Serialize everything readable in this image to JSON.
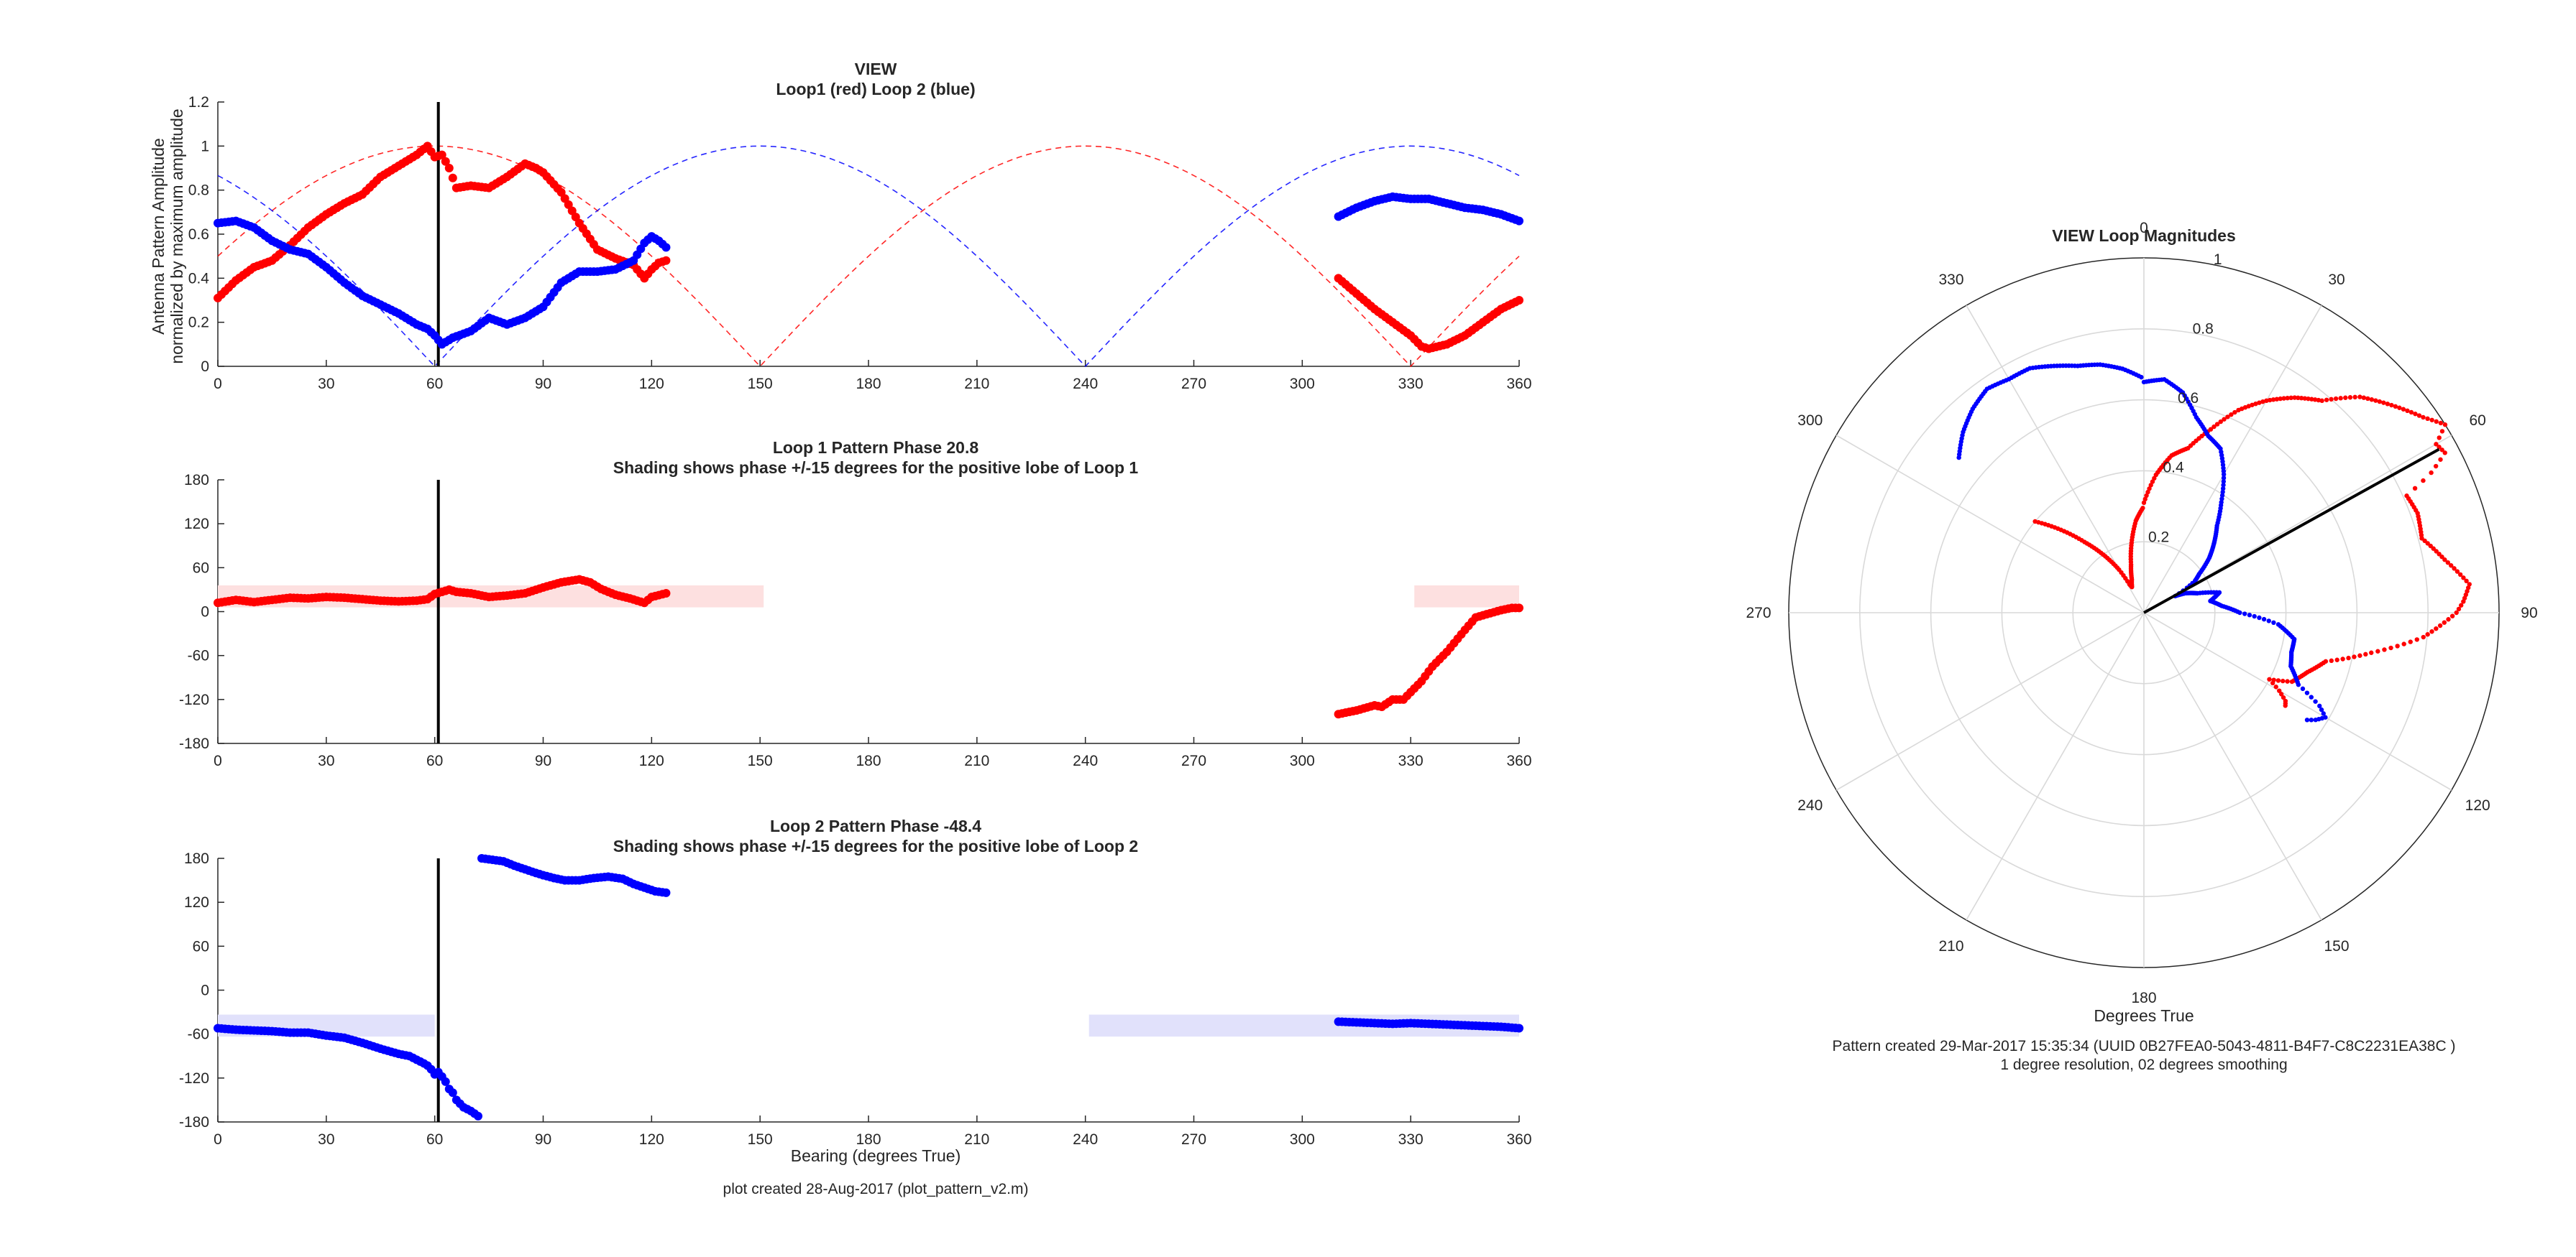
{
  "colors": {
    "loop1": "#ff0000",
    "loop2": "#0000ff",
    "shade1": "#fde0e0",
    "shade2": "#e1e1fb",
    "bearing_line": "#000000",
    "axis": "#262626",
    "grid": "#d9d9d9"
  },
  "footer": {
    "left": "plot created 28-Aug-2017 (plot_pattern_v2.m)",
    "right_line1": "Pattern created 29-Mar-2017 15:35:34 (UUID 0B27FEA0-5043-4811-B4F7-C8C2231EA38C )",
    "right_line2": "1 degree resolution, 02 degrees smoothing"
  },
  "chart_data": [
    {
      "type": "line",
      "title": "VIEW",
      "subtitle": "Loop1 (red) Loop 2 (blue)",
      "ylabel_line1": "Antenna Pattern Amplitude",
      "ylabel_line2": "normalized by maximum amplitude",
      "xlim": [
        0,
        360
      ],
      "ylim": [
        0,
        1.2
      ],
      "xticks": [
        "0",
        "30",
        "60",
        "90",
        "120",
        "150",
        "180",
        "210",
        "240",
        "270",
        "300",
        "330",
        "360"
      ],
      "yticks": [
        "0",
        "0.2",
        "0.4",
        "0.6",
        "0.8",
        "1",
        "1.2"
      ],
      "bearing_line": 61,
      "ideal_curves": [
        {
          "series": "loop1",
          "style": "dashed",
          "formula": "abs(cos(bearing - 60))"
        },
        {
          "series": "loop2",
          "style": "dashed",
          "formula": "abs(cos(bearing - 150))"
        }
      ],
      "series": [
        {
          "key": "loop1",
          "segments": [
            {
              "x": [
                0,
                5,
                10,
                15,
                20,
                25,
                30,
                35,
                40,
                45,
                50,
                55,
                58,
                60,
                62,
                64,
                66,
                70,
                75,
                80,
                85,
                88,
                90,
                95,
                100,
                105,
                110,
                115,
                118,
                120,
                122,
                124
              ],
              "y": [
                0.31,
                0.39,
                0.45,
                0.48,
                0.55,
                0.63,
                0.69,
                0.74,
                0.78,
                0.86,
                0.91,
                0.96,
                1.0,
                0.95,
                0.96,
                0.9,
                0.81,
                0.82,
                0.81,
                0.86,
                0.92,
                0.9,
                0.88,
                0.79,
                0.65,
                0.53,
                0.49,
                0.46,
                0.4,
                0.44,
                0.47,
                0.48
              ]
            },
            {
              "x": [
                310,
                315,
                320,
                325,
                330,
                333,
                335,
                340,
                345,
                350,
                355,
                360
              ],
              "y": [
                0.4,
                0.33,
                0.26,
                0.2,
                0.14,
                0.09,
                0.08,
                0.1,
                0.14,
                0.2,
                0.26,
                0.3
              ]
            }
          ]
        },
        {
          "key": "loop2",
          "segments": [
            {
              "x": [
                0,
                5,
                10,
                15,
                20,
                25,
                30,
                35,
                40,
                45,
                50,
                55,
                58,
                60,
                62,
                65,
                70,
                75,
                80,
                85,
                90,
                95,
                100,
                105,
                110,
                115,
                118,
                120,
                122,
                124
              ],
              "y": [
                0.65,
                0.66,
                0.63,
                0.57,
                0.53,
                0.51,
                0.45,
                0.38,
                0.32,
                0.28,
                0.24,
                0.19,
                0.17,
                0.14,
                0.1,
                0.13,
                0.16,
                0.22,
                0.19,
                0.22,
                0.27,
                0.38,
                0.43,
                0.43,
                0.44,
                0.48,
                0.56,
                0.59,
                0.57,
                0.54
              ]
            },
            {
              "x": [
                310,
                315,
                320,
                325,
                330,
                335,
                340,
                345,
                350,
                355,
                360
              ],
              "y": [
                0.68,
                0.72,
                0.75,
                0.77,
                0.76,
                0.76,
                0.74,
                0.72,
                0.71,
                0.69,
                0.66
              ]
            }
          ]
        }
      ]
    },
    {
      "type": "scatter",
      "title": "Loop 1 Pattern Phase 20.8",
      "subtitle": "Shading shows phase +/-15 degrees for the positive lobe of Loop 1",
      "xlim": [
        0,
        360
      ],
      "ylim": [
        -180,
        180
      ],
      "xticks": [
        "0",
        "30",
        "60",
        "90",
        "120",
        "150",
        "180",
        "210",
        "240",
        "270",
        "300",
        "330",
        "360"
      ],
      "yticks": [
        "-180",
        "-120",
        "-60",
        "0",
        "60",
        "120",
        "180"
      ],
      "bearing_line": 61,
      "shading": [
        {
          "x0": 0,
          "x1": 151,
          "y0": 5.8,
          "y1": 35.8
        },
        {
          "x0": 331,
          "x1": 360,
          "y0": 5.8,
          "y1": 35.8
        }
      ],
      "series": [
        {
          "key": "loop1",
          "segments": [
            {
              "x": [
                0,
                5,
                10,
                15,
                20,
                25,
                30,
                35,
                40,
                45,
                50,
                55,
                58,
                60,
                62,
                64,
                66,
                70,
                75,
                80,
                85,
                90,
                95,
                100,
                103,
                106,
                110,
                114,
                118,
                120,
                124
              ],
              "y": [
                12,
                16,
                13,
                16,
                19,
                18,
                20,
                19,
                17,
                15,
                14,
                15,
                17,
                24,
                27,
                30,
                27,
                25,
                20,
                22,
                25,
                33,
                40,
                44,
                40,
                31,
                23,
                18,
                12,
                20,
                25
              ]
            },
            {
              "x": [
                310,
                315,
                320,
                322,
                325,
                328,
                330,
                333,
                336,
                340,
                345,
                348,
                350,
                355,
                358,
                360
              ],
              "y": [
                -140,
                -135,
                -128,
                -130,
                -120,
                -120,
                -110,
                -95,
                -75,
                -55,
                -25,
                -8,
                -5,
                2,
                5,
                5
              ]
            }
          ]
        }
      ]
    },
    {
      "type": "scatter",
      "title": "Loop 2 Pattern Phase -48.4",
      "subtitle": "Shading shows phase +/-15 degrees for the positive lobe of Loop 2",
      "xlabel": "Bearing (degrees True)",
      "xlim": [
        0,
        360
      ],
      "ylim": [
        -180,
        180
      ],
      "xticks": [
        "0",
        "30",
        "60",
        "90",
        "120",
        "150",
        "180",
        "210",
        "240",
        "270",
        "300",
        "330",
        "360"
      ],
      "yticks": [
        "-180",
        "-120",
        "-60",
        "0",
        "60",
        "120",
        "180"
      ],
      "bearing_line": 61,
      "shading": [
        {
          "x0": 0,
          "x1": 60,
          "y0": -63.4,
          "y1": -33.4
        },
        {
          "x0": 241,
          "x1": 360,
          "y0": -63.4,
          "y1": -33.4
        }
      ],
      "series": [
        {
          "key": "loop2",
          "segments": [
            {
              "x": [
                0,
                5,
                10,
                15,
                20,
                25,
                30,
                35,
                40,
                45,
                50,
                53,
                55,
                57,
                58,
                59,
                60,
                61,
                62,
                63,
                64,
                65,
                66,
                67,
                68,
                70,
                72
              ],
              "y": [
                -52,
                -54,
                -55,
                -56,
                -58,
                -58,
                -62,
                -65,
                -72,
                -80,
                -87,
                -90,
                -95,
                -100,
                -103,
                -108,
                -115,
                -112,
                -118,
                -125,
                -135,
                -140,
                -150,
                -155,
                -160,
                -165,
                -172
              ]
            },
            {
              "x": [
                73,
                76,
                79,
                82,
                85,
                88,
                90,
                93,
                96,
                100,
                104,
                108,
                112,
                115,
                118,
                121,
                124
              ],
              "y": [
                180,
                178,
                176,
                170,
                165,
                160,
                157,
                153,
                150,
                150,
                153,
                155,
                152,
                145,
                140,
                135,
                133
              ]
            },
            {
              "x": [
                310,
                315,
                320,
                325,
                330,
                335,
                340,
                345,
                350,
                355,
                360
              ],
              "y": [
                -43,
                -44,
                -45,
                -46,
                -45,
                -46,
                -47,
                -48,
                -49,
                -50,
                -52
              ]
            }
          ]
        }
      ]
    },
    {
      "type": "polar",
      "title": "VIEW Loop Magnitudes",
      "xlabel": "Degrees True",
      "rlim": [
        0,
        1
      ],
      "rticks": [
        "0.2",
        "0.4",
        "0.6",
        "0.8",
        "1"
      ],
      "theta_labels": [
        "0",
        "30",
        "60",
        "90",
        "120",
        "150",
        "180",
        "210",
        "240",
        "270",
        "300",
        "330"
      ],
      "direction": "clockwise, 0 at top",
      "bearing_line": {
        "angle": 61,
        "r": 0.95
      },
      "series": [
        {
          "key": "loop1",
          "segments": [
            {
              "theta": [
                0,
                5,
                10,
                15,
                20,
                25,
                30,
                35,
                40,
                45,
                50,
                55,
                58,
                60,
                62,
                64,
                66,
                70,
                75,
                80,
                85,
                88,
                90,
                95,
                100,
                105,
                110,
                115,
                118,
                120,
                122,
                124
              ],
              "r": [
                0.31,
                0.39,
                0.45,
                0.48,
                0.55,
                0.63,
                0.69,
                0.74,
                0.78,
                0.86,
                0.91,
                0.96,
                1.0,
                0.95,
                0.96,
                0.9,
                0.81,
                0.82,
                0.81,
                0.86,
                0.92,
                0.9,
                0.88,
                0.79,
                0.65,
                0.53,
                0.49,
                0.46,
                0.4,
                0.44,
                0.47,
                0.48
              ]
            },
            {
              "theta": [
                310,
                315,
                320,
                325,
                330,
                333,
                335,
                340,
                345,
                350,
                355,
                360
              ],
              "r": [
                0.4,
                0.33,
                0.26,
                0.2,
                0.14,
                0.09,
                0.08,
                0.1,
                0.14,
                0.2,
                0.26,
                0.3
              ]
            }
          ]
        },
        {
          "key": "loop2",
          "segments": [
            {
              "theta": [
                0,
                5,
                10,
                15,
                20,
                25,
                30,
                35,
                40,
                45,
                50,
                55,
                58,
                60,
                62,
                65,
                70,
                75,
                80,
                85,
                90,
                95,
                100,
                105,
                110,
                115,
                118,
                120,
                122,
                124
              ],
              "r": [
                0.65,
                0.66,
                0.63,
                0.57,
                0.53,
                0.51,
                0.45,
                0.38,
                0.32,
                0.28,
                0.24,
                0.19,
                0.17,
                0.14,
                0.1,
                0.13,
                0.16,
                0.22,
                0.19,
                0.22,
                0.27,
                0.38,
                0.43,
                0.43,
                0.44,
                0.48,
                0.56,
                0.59,
                0.57,
                0.54
              ]
            },
            {
              "theta": [
                310,
                315,
                320,
                325,
                330,
                335,
                340,
                345,
                350,
                355,
                360
              ],
              "r": [
                0.68,
                0.72,
                0.75,
                0.77,
                0.76,
                0.76,
                0.74,
                0.72,
                0.71,
                0.69,
                0.66
              ]
            }
          ]
        }
      ]
    }
  ]
}
